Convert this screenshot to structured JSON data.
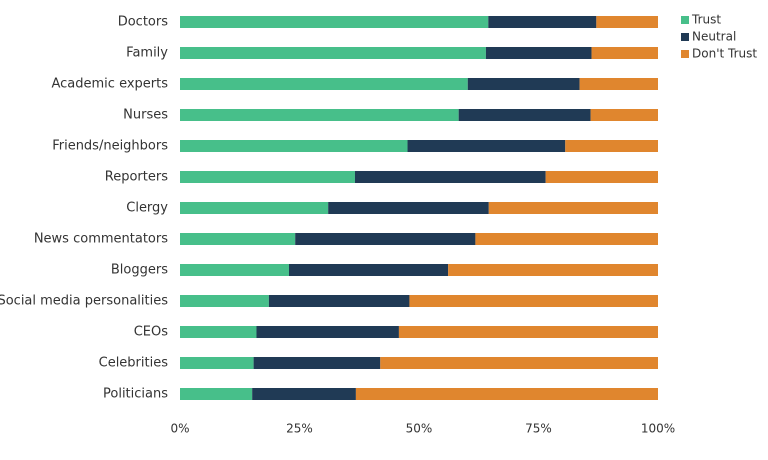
{
  "chart_data": {
    "type": "bar",
    "orientation": "horizontal",
    "stacked": "percent",
    "categories": [
      "Doctors",
      "Family",
      "Academic experts",
      "Nurses",
      "Friends/neighbors",
      "Reporters",
      "Clergy",
      "News commentators",
      "Bloggers",
      "Social media personalities",
      "CEOs",
      "Celebrities",
      "Politicians"
    ],
    "series": [
      {
        "name": "Trust",
        "color": "#47bf8a",
        "values": [
          64.5,
          64.0,
          60.2,
          58.3,
          47.6,
          36.6,
          31.0,
          24.1,
          22.8,
          18.6,
          16.0,
          15.4,
          15.1
        ]
      },
      {
        "name": "Neutral",
        "color": "#203a55",
        "values": [
          22.6,
          22.1,
          23.4,
          27.6,
          33.0,
          39.9,
          33.6,
          37.7,
          33.3,
          29.4,
          29.8,
          26.5,
          21.7
        ]
      },
      {
        "name": "Don't Trust",
        "color": "#e0862e",
        "values": [
          12.9,
          13.9,
          16.4,
          14.1,
          19.4,
          23.5,
          35.4,
          38.2,
          43.9,
          52.0,
          54.2,
          58.1,
          63.2
        ]
      }
    ],
    "x_ticks": [
      "0%",
      "25%",
      "50%",
      "75%",
      "100%"
    ],
    "xlim": [
      0,
      100
    ],
    "legend_position": "top-right",
    "grid": false
  }
}
